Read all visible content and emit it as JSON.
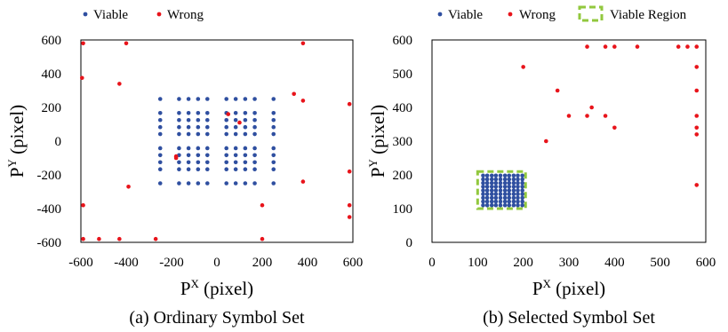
{
  "chart_data": [
    {
      "type": "scatter",
      "caption": "(a) Ordinary Symbol Set",
      "xlabel": {
        "base": "P",
        "sup": "X",
        "rest": " (pixel)"
      },
      "ylabel": {
        "base": "P",
        "sup": "Y",
        "rest": " (pixel)"
      },
      "xlim": [
        -600,
        600
      ],
      "ylim": [
        -600,
        600
      ],
      "xticks": [
        -600,
        -400,
        -200,
        0,
        200,
        400,
        600
      ],
      "yticks": [
        -600,
        -400,
        -200,
        0,
        200,
        400,
        600
      ],
      "legend": {
        "placement": "top-left",
        "entries": [
          "Viable",
          "Wrong"
        ]
      },
      "series": [
        {
          "name": "Viable",
          "color": "#2f4fa0",
          "grid": {
            "x": [
              -250,
              -208,
              -167,
              -125,
              -83,
              -42,
              42,
              83,
              125,
              167,
              208,
              250
            ],
            "y": [
              -250,
              -208,
              -167,
              -125,
              -83,
              -42,
              42,
              83,
              125,
              167,
              208,
              250
            ],
            "xskip": [
              -208,
              208
            ],
            "yskip": [
              -208,
              0,
              208
            ]
          },
          "points_x": [
            -250,
            -167,
            -125,
            -83,
            -42,
            42,
            83,
            125,
            167,
            250
          ],
          "points_y": [
            -250,
            -167,
            -125,
            -83,
            -42,
            42,
            83,
            125,
            167,
            250
          ]
        },
        {
          "name": "Wrong",
          "color": "#e8141b",
          "points": [
            [
              -590,
              580
            ],
            [
              -400,
              580
            ],
            [
              380,
              580
            ],
            [
              -595,
              375
            ],
            [
              -430,
              340
            ],
            [
              340,
              280
            ],
            [
              380,
              240
            ],
            [
              585,
              220
            ],
            [
              50,
              160
            ],
            [
              100,
              110
            ],
            [
              -180,
              -90
            ],
            [
              -180,
              -100
            ],
            [
              -390,
              -270
            ],
            [
              380,
              -240
            ],
            [
              585,
              -180
            ],
            [
              -590,
              -380
            ],
            [
              200,
              -380
            ],
            [
              585,
              -380
            ],
            [
              585,
              -450
            ],
            [
              -590,
              -580
            ],
            [
              -520,
              -580
            ],
            [
              -430,
              -580
            ],
            [
              -270,
              -580
            ],
            [
              200,
              -580
            ]
          ]
        }
      ]
    },
    {
      "type": "scatter",
      "caption": "(b) Selected Symbol Set",
      "xlabel": {
        "base": "P",
        "sup": "X",
        "rest": " (pixel)"
      },
      "ylabel": {
        "base": "P",
        "sup": "Y",
        "rest": " (pixel)"
      },
      "xlim": [
        0,
        600
      ],
      "ylim": [
        0,
        600
      ],
      "xticks": [
        0,
        100,
        200,
        300,
        400,
        500,
        600
      ],
      "yticks": [
        0,
        100,
        200,
        300,
        400,
        500,
        600
      ],
      "legend": {
        "placement": "top-left",
        "entries": [
          "Viable",
          "Wrong",
          "Viable Region"
        ]
      },
      "viable_region": {
        "x": [
          100,
          205
        ],
        "y": [
          100,
          210
        ],
        "color": "#92c83e"
      },
      "series": [
        {
          "name": "Viable",
          "color": "#2f4fa0",
          "points_x": [
            112,
            121,
            131,
            140,
            150,
            160,
            169,
            179,
            188,
            198
          ],
          "points_y": [
            110,
            121,
            132,
            143,
            154,
            165,
            176,
            187,
            198
          ]
        },
        {
          "name": "Wrong",
          "color": "#e8141b",
          "points": [
            [
              200,
              520
            ],
            [
              250,
              300
            ],
            [
              275,
              450
            ],
            [
              300,
              375
            ],
            [
              340,
              375
            ],
            [
              340,
              580
            ],
            [
              350,
              400
            ],
            [
              380,
              375
            ],
            [
              380,
              580
            ],
            [
              400,
              340
            ],
            [
              400,
              580
            ],
            [
              450,
              580
            ],
            [
              540,
              580
            ],
            [
              560,
              580
            ],
            [
              580,
              580
            ],
            [
              580,
              520
            ],
            [
              580,
              450
            ],
            [
              580,
              375
            ],
            [
              580,
              340
            ],
            [
              580,
              320
            ],
            [
              580,
              170
            ]
          ]
        }
      ]
    }
  ]
}
